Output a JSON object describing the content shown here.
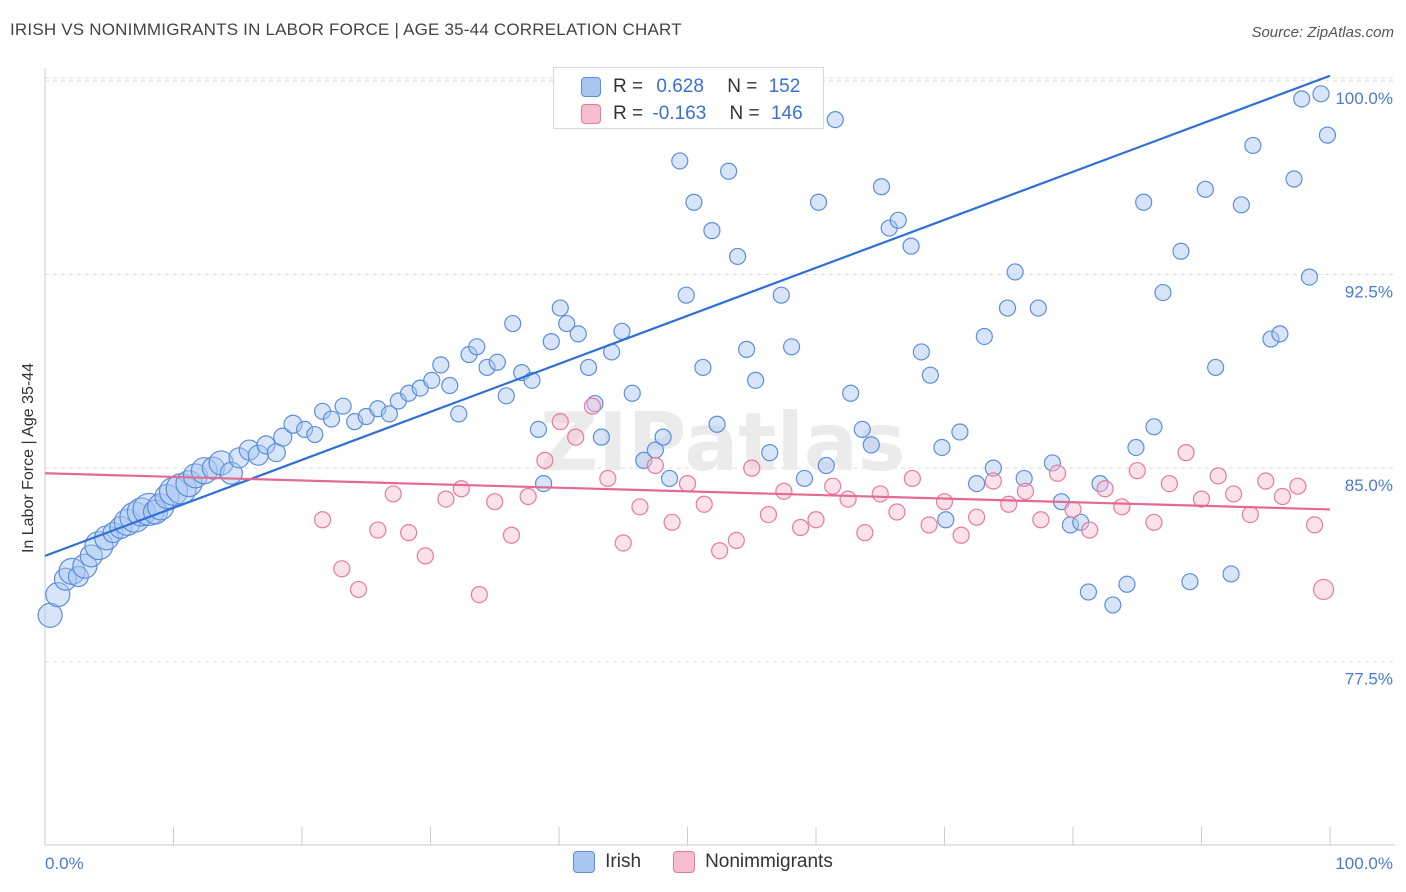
{
  "title": "IRISH VS NONIMMIGRANTS IN LABOR FORCE | AGE 35-44 CORRELATION CHART",
  "source": "Source: ZipAtlas.com",
  "watermark": "ZIPatlas",
  "colors": {
    "irish_fill": "#a9c6f0",
    "irish_stroke": "#5b8fdc",
    "irish_line": "#2f6fd6",
    "nonimm_fill": "#f6bcd0",
    "nonimm_stroke": "#e87aa0",
    "nonimm_line": "#e46a92",
    "tick_text": "#4a7bd0",
    "grid": "#dddddd"
  },
  "legend": {
    "irish": {
      "r_label": "R =",
      "r_value": "0.628",
      "n_label": "N =",
      "n_value": "152"
    },
    "nonimm": {
      "r_label": "R =",
      "r_value": "-0.163",
      "n_label": "N =",
      "n_value": "146"
    }
  },
  "bottom_legend": {
    "irish": "Irish",
    "nonimm": "Nonimmigrants"
  },
  "chart_data": {
    "type": "scatter",
    "title": "IRISH VS NONIMMIGRANTS IN LABOR FORCE | AGE 35-44 CORRELATION CHART",
    "xlabel": "",
    "ylabel": "In Labor Force | Age 35-44",
    "xlim": [
      0,
      100
    ],
    "ylim": [
      70.4,
      100.5
    ],
    "x_tick_labels": [
      "0.0%",
      "100.0%"
    ],
    "y_ticks": [
      77.5,
      85.0,
      92.5,
      100.0
    ],
    "y_tick_labels": [
      "77.5%",
      "85.0%",
      "92.5%",
      "100.0%"
    ],
    "grid": "horizontal dashed",
    "legend_placement": "top-center",
    "series": [
      {
        "name": "Irish",
        "r": 0.628,
        "n": 152,
        "trend": {
          "x": [
            0,
            100
          ],
          "y": [
            81.6,
            100.2
          ]
        },
        "points": [
          [
            0.4,
            79.3,
            12
          ],
          [
            1.0,
            80.1,
            12
          ],
          [
            1.6,
            80.7,
            11
          ],
          [
            2.1,
            81.0,
            13
          ],
          [
            2.6,
            80.8,
            10
          ],
          [
            3.1,
            81.2,
            12
          ],
          [
            3.6,
            81.6,
            11
          ],
          [
            4.2,
            82.0,
            14
          ],
          [
            4.8,
            82.3,
            12
          ],
          [
            5.3,
            82.5,
            10
          ],
          [
            5.9,
            82.7,
            11
          ],
          [
            6.4,
            82.9,
            13
          ],
          [
            7.0,
            83.1,
            15
          ],
          [
            7.5,
            83.3,
            14
          ],
          [
            8.1,
            83.4,
            16
          ],
          [
            8.6,
            83.3,
            12
          ],
          [
            9.0,
            83.5,
            13
          ],
          [
            9.5,
            83.9,
            12
          ],
          [
            10.0,
            84.1,
            14
          ],
          [
            10.6,
            84.2,
            15
          ],
          [
            11.2,
            84.4,
            13
          ],
          [
            11.7,
            84.7,
            12
          ],
          [
            12.4,
            84.9,
            13
          ],
          [
            13.1,
            85.0,
            11
          ],
          [
            13.7,
            85.2,
            12
          ],
          [
            14.5,
            84.8,
            11
          ],
          [
            15.1,
            85.4,
            10
          ],
          [
            15.9,
            85.7,
            10
          ],
          [
            16.6,
            85.5,
            10
          ],
          [
            17.2,
            85.9,
            9
          ],
          [
            18.0,
            85.6,
            9
          ],
          [
            18.5,
            86.2,
            9
          ],
          [
            19.3,
            86.7,
            9
          ],
          [
            20.2,
            86.5,
            8
          ],
          [
            21.0,
            86.3,
            8
          ],
          [
            21.6,
            87.2,
            8
          ],
          [
            22.3,
            86.9,
            8
          ],
          [
            23.2,
            87.4,
            8
          ],
          [
            24.1,
            86.8,
            8
          ],
          [
            25.0,
            87.0,
            8
          ],
          [
            25.9,
            87.3,
            8
          ],
          [
            26.8,
            87.1,
            8
          ],
          [
            27.5,
            87.6,
            8
          ],
          [
            28.3,
            87.9,
            8
          ],
          [
            29.2,
            88.1,
            8
          ],
          [
            30.1,
            88.4,
            8
          ],
          [
            30.8,
            89.0,
            8
          ],
          [
            31.5,
            88.2,
            8
          ],
          [
            32.2,
            87.1,
            8
          ],
          [
            33.0,
            89.4,
            8
          ],
          [
            33.6,
            89.7,
            8
          ],
          [
            34.4,
            88.9,
            8
          ],
          [
            35.2,
            89.1,
            8
          ],
          [
            35.9,
            87.8,
            8
          ],
          [
            36.4,
            90.6,
            8
          ],
          [
            37.1,
            88.7,
            8
          ],
          [
            37.9,
            88.4,
            8
          ],
          [
            38.4,
            86.5,
            8
          ],
          [
            38.8,
            84.4,
            8
          ],
          [
            39.4,
            89.9,
            8
          ],
          [
            40.1,
            91.2,
            8
          ],
          [
            40.6,
            90.6,
            8
          ],
          [
            41.5,
            90.2,
            8
          ],
          [
            42.3,
            88.9,
            8
          ],
          [
            42.8,
            87.5,
            8
          ],
          [
            43.3,
            86.2,
            8
          ],
          [
            44.1,
            89.5,
            8
          ],
          [
            44.9,
            90.3,
            8
          ],
          [
            45.7,
            87.9,
            8
          ],
          [
            46.6,
            85.3,
            8
          ],
          [
            47.5,
            85.7,
            8
          ],
          [
            48.1,
            86.2,
            8
          ],
          [
            48.6,
            84.6,
            8
          ],
          [
            49.4,
            96.9,
            8
          ],
          [
            49.9,
            91.7,
            8
          ],
          [
            50.5,
            95.3,
            8
          ],
          [
            51.2,
            88.9,
            8
          ],
          [
            51.9,
            94.2,
            8
          ],
          [
            52.3,
            86.7,
            8
          ],
          [
            53.2,
            96.5,
            8
          ],
          [
            53.9,
            93.2,
            8
          ],
          [
            54.6,
            89.6,
            8
          ],
          [
            55.3,
            88.4,
            8
          ],
          [
            56.4,
            85.6,
            8
          ],
          [
            57.3,
            91.7,
            8
          ],
          [
            58.1,
            89.7,
            8
          ],
          [
            59.1,
            84.6,
            8
          ],
          [
            60.2,
            95.3,
            8
          ],
          [
            60.8,
            85.1,
            8
          ],
          [
            61.5,
            98.5,
            8
          ],
          [
            62.7,
            87.9,
            8
          ],
          [
            63.6,
            86.5,
            8
          ],
          [
            64.3,
            85.9,
            8
          ],
          [
            65.1,
            95.9,
            8
          ],
          [
            65.7,
            94.3,
            8
          ],
          [
            66.4,
            94.6,
            8
          ],
          [
            67.4,
            93.6,
            8
          ],
          [
            68.2,
            89.5,
            8
          ],
          [
            68.9,
            88.6,
            8
          ],
          [
            69.8,
            85.8,
            8
          ],
          [
            70.1,
            83.0,
            8
          ],
          [
            71.2,
            86.4,
            8
          ],
          [
            72.5,
            84.4,
            8
          ],
          [
            73.1,
            90.1,
            8
          ],
          [
            73.8,
            85.0,
            8
          ],
          [
            74.9,
            91.2,
            8
          ],
          [
            75.5,
            92.6,
            8
          ],
          [
            76.2,
            84.6,
            8
          ],
          [
            77.3,
            91.2,
            8
          ],
          [
            78.4,
            85.2,
            8
          ],
          [
            79.1,
            83.7,
            8
          ],
          [
            79.8,
            82.8,
            8
          ],
          [
            80.6,
            82.9,
            8
          ],
          [
            81.2,
            80.2,
            8
          ],
          [
            82.1,
            84.4,
            8
          ],
          [
            83.1,
            79.7,
            8
          ],
          [
            84.2,
            80.5,
            8
          ],
          [
            84.9,
            85.8,
            8
          ],
          [
            85.5,
            95.3,
            8
          ],
          [
            86.3,
            86.6,
            8
          ],
          [
            87.0,
            91.8,
            8
          ],
          [
            88.4,
            93.4,
            8
          ],
          [
            89.1,
            80.6,
            8
          ],
          [
            90.3,
            95.8,
            8
          ],
          [
            91.1,
            88.9,
            8
          ],
          [
            92.3,
            80.9,
            8
          ],
          [
            93.1,
            95.2,
            8
          ],
          [
            94.0,
            97.5,
            8
          ],
          [
            95.4,
            90.0,
            8
          ],
          [
            96.1,
            90.2,
            8
          ],
          [
            97.2,
            96.2,
            8
          ],
          [
            97.8,
            99.3,
            8
          ],
          [
            98.4,
            92.4,
            8
          ],
          [
            99.3,
            99.5,
            8
          ],
          [
            99.8,
            97.9,
            8
          ]
        ]
      },
      {
        "name": "Nonimmigrants",
        "r": -0.163,
        "n": 146,
        "trend": {
          "x": [
            0,
            100
          ],
          "y": [
            84.8,
            83.4
          ]
        },
        "points": [
          [
            21.6,
            83.0,
            8
          ],
          [
            23.1,
            81.1,
            8
          ],
          [
            24.4,
            80.3,
            8
          ],
          [
            25.9,
            82.6,
            8
          ],
          [
            27.1,
            84.0,
            8
          ],
          [
            28.3,
            82.5,
            8
          ],
          [
            29.6,
            81.6,
            8
          ],
          [
            31.2,
            83.8,
            8
          ],
          [
            32.4,
            84.2,
            8
          ],
          [
            33.8,
            80.1,
            8
          ],
          [
            35.0,
            83.7,
            8
          ],
          [
            36.3,
            82.4,
            8
          ],
          [
            37.6,
            83.9,
            8
          ],
          [
            38.9,
            85.3,
            8
          ],
          [
            40.1,
            86.8,
            8
          ],
          [
            41.3,
            86.2,
            8
          ],
          [
            42.6,
            87.4,
            8
          ],
          [
            43.8,
            84.6,
            8
          ],
          [
            45.0,
            82.1,
            8
          ],
          [
            46.3,
            83.5,
            8
          ],
          [
            47.5,
            85.1,
            8
          ],
          [
            48.8,
            82.9,
            8
          ],
          [
            50.0,
            84.4,
            8
          ],
          [
            51.3,
            83.6,
            8
          ],
          [
            52.5,
            81.8,
            8
          ],
          [
            53.8,
            82.2,
            8
          ],
          [
            55.0,
            85.0,
            8
          ],
          [
            56.3,
            83.2,
            8
          ],
          [
            57.5,
            84.1,
            8
          ],
          [
            58.8,
            82.7,
            8
          ],
          [
            60.0,
            83.0,
            8
          ],
          [
            61.3,
            84.3,
            8
          ],
          [
            62.5,
            83.8,
            8
          ],
          [
            63.8,
            82.5,
            8
          ],
          [
            65.0,
            84.0,
            8
          ],
          [
            66.3,
            83.3,
            8
          ],
          [
            67.5,
            84.6,
            8
          ],
          [
            68.8,
            82.8,
            8
          ],
          [
            70.0,
            83.7,
            8
          ],
          [
            71.3,
            82.4,
            8
          ],
          [
            72.5,
            83.1,
            8
          ],
          [
            73.8,
            84.5,
            8
          ],
          [
            75.0,
            83.6,
            8
          ],
          [
            76.3,
            84.1,
            8
          ],
          [
            77.5,
            83.0,
            8
          ],
          [
            78.8,
            84.8,
            8
          ],
          [
            80.0,
            83.4,
            8
          ],
          [
            81.3,
            82.6,
            8
          ],
          [
            82.5,
            84.2,
            8
          ],
          [
            83.8,
            83.5,
            8
          ],
          [
            85.0,
            84.9,
            8
          ],
          [
            86.3,
            82.9,
            8
          ],
          [
            87.5,
            84.4,
            8
          ],
          [
            88.8,
            85.6,
            8
          ],
          [
            90.0,
            83.8,
            8
          ],
          [
            91.3,
            84.7,
            8
          ],
          [
            92.5,
            84.0,
            8
          ],
          [
            93.8,
            83.2,
            8
          ],
          [
            95.0,
            84.5,
            8
          ],
          [
            96.3,
            83.9,
            8
          ],
          [
            97.5,
            84.3,
            8
          ],
          [
            98.8,
            82.8,
            8
          ],
          [
            99.5,
            80.3,
            10
          ]
        ]
      }
    ]
  }
}
